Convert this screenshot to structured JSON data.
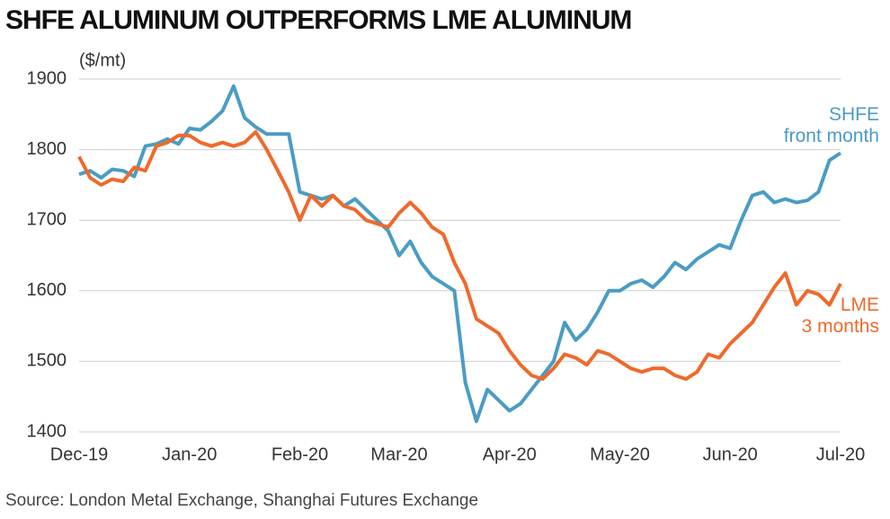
{
  "chart_data": {
    "type": "line",
    "title": "SHFE ALUMINUM OUTPERFORMS LME ALUMINUM",
    "y_label": "($/mt)",
    "source": "Source: London Metal Exchange, Shanghai Futures Exchange",
    "categories": [
      "Dec-19",
      null,
      null,
      null,
      null,
      null,
      null,
      null,
      null,
      null,
      "Jan-20",
      null,
      null,
      null,
      null,
      null,
      null,
      null,
      null,
      null,
      "Feb-20",
      null,
      null,
      null,
      null,
      null,
      null,
      null,
      null,
      "Mar-20",
      null,
      null,
      null,
      null,
      null,
      null,
      null,
      null,
      null,
      "Apr-20",
      null,
      null,
      null,
      null,
      null,
      null,
      null,
      null,
      null,
      "May-20",
      null,
      null,
      null,
      null,
      null,
      null,
      null,
      null,
      null,
      "Jun-20",
      null,
      null,
      null,
      null,
      null,
      null,
      null,
      null,
      null,
      "Jul-20"
    ],
    "series": [
      {
        "name": "SHFE\nfront month",
        "color": "#4a9cc4",
        "values": [
          1765,
          1770,
          1760,
          1772,
          1770,
          1762,
          1805,
          1808,
          1815,
          1808,
          1830,
          1828,
          1840,
          1855,
          1890,
          1845,
          1832,
          1822,
          1822,
          1822,
          1740,
          1735,
          1730,
          1735,
          1720,
          1730,
          1715,
          1700,
          1685,
          1650,
          1670,
          1640,
          1620,
          1610,
          1600,
          1470,
          1415,
          1460,
          1445,
          1430,
          1440,
          1460,
          1480,
          1500,
          1555,
          1530,
          1545,
          1570,
          1600,
          1600,
          1610,
          1615,
          1605,
          1620,
          1640,
          1630,
          1645,
          1655,
          1665,
          1660,
          1700,
          1735,
          1740,
          1725,
          1730,
          1725,
          1728,
          1740,
          1785,
          1795
        ]
      },
      {
        "name": "LME\n3 months",
        "color": "#ee6a2c",
        "values": [
          1790,
          1760,
          1750,
          1758,
          1755,
          1775,
          1770,
          1805,
          1810,
          1820,
          1820,
          1810,
          1805,
          1810,
          1805,
          1810,
          1825,
          1800,
          1770,
          1740,
          1700,
          1735,
          1720,
          1735,
          1720,
          1715,
          1700,
          1695,
          1690,
          1710,
          1725,
          1710,
          1690,
          1680,
          1640,
          1610,
          1560,
          1550,
          1540,
          1515,
          1495,
          1480,
          1475,
          1490,
          1510,
          1505,
          1495,
          1515,
          1510,
          1500,
          1490,
          1485,
          1490,
          1490,
          1480,
          1475,
          1485,
          1510,
          1505,
          1525,
          1540,
          1555,
          1580,
          1605,
          1625,
          1580,
          1600,
          1595,
          1580,
          1610
        ]
      }
    ],
    "ylim": [
      1400,
      1900
    ],
    "yticks": [
      1400,
      1500,
      1600,
      1700,
      1800,
      1900
    ],
    "grid": true
  }
}
